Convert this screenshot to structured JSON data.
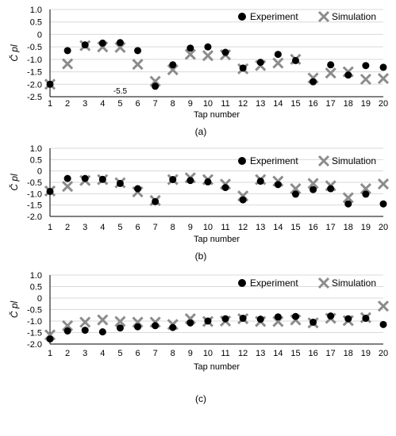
{
  "chart_data": [
    {
      "type": "scatter",
      "panel_label": "(a)",
      "xlabel": "Tap number",
      "ylabel": "C̆ pl",
      "ylim": [
        -2.5,
        1.0
      ],
      "ytick_labels": [
        "1.0",
        "0.5",
        "0",
        "-0.5",
        "-1.0",
        "-1.5",
        "-2.0",
        "-2.5"
      ],
      "yticks": [
        1.0,
        0.5,
        0,
        -0.5,
        -1.0,
        -1.5,
        -2.0,
        -2.5
      ],
      "annotation": "-5.5",
      "x": [
        1,
        2,
        3,
        4,
        5,
        6,
        7,
        8,
        9,
        10,
        11,
        12,
        13,
        14,
        15,
        16,
        17,
        18,
        19,
        20
      ],
      "series": [
        {
          "name": "Experiment",
          "values": [
            -2.0,
            -0.65,
            -0.42,
            -0.35,
            -0.33,
            -0.65,
            -2.08,
            -1.22,
            -0.55,
            -0.5,
            -0.72,
            -1.35,
            -1.12,
            -0.8,
            -1.05,
            -1.9,
            -1.22,
            -1.63,
            -1.25,
            -1.32
          ]
        },
        {
          "name": "Simulation",
          "values": [
            -2.0,
            -1.18,
            -0.45,
            -0.5,
            -0.52,
            -1.2,
            -1.88,
            -1.42,
            -0.8,
            -0.85,
            -0.82,
            -1.38,
            -1.25,
            -1.15,
            -1.0,
            -1.75,
            -1.55,
            -1.5,
            -1.8,
            -1.77
          ]
        }
      ],
      "grid": true,
      "legend": "top-right"
    },
    {
      "type": "scatter",
      "panel_label": "(b)",
      "xlabel": "Tap number",
      "ylabel": "C̆ pl",
      "ylim": [
        -2.0,
        1.0
      ],
      "ytick_labels": [
        "1.0",
        "0.5",
        "0",
        "-0.5",
        "-1.0",
        "-1.5",
        "-2.0"
      ],
      "yticks": [
        1.0,
        0.5,
        0,
        -0.5,
        -1.0,
        -1.5,
        -2.0
      ],
      "x": [
        1,
        2,
        3,
        4,
        5,
        6,
        7,
        8,
        9,
        10,
        11,
        12,
        13,
        14,
        15,
        16,
        17,
        18,
        19,
        20
      ],
      "series": [
        {
          "name": "Experiment",
          "values": [
            -0.9,
            -0.33,
            -0.33,
            -0.37,
            -0.55,
            -0.78,
            -1.35,
            -0.38,
            -0.42,
            -0.48,
            -0.73,
            -1.27,
            -0.45,
            -0.6,
            -1.02,
            -0.82,
            -0.78,
            -1.45,
            -1.02,
            -1.45
          ]
        },
        {
          "name": "Simulation",
          "values": [
            -0.88,
            -0.68,
            -0.42,
            -0.38,
            -0.52,
            -0.92,
            -1.3,
            -0.38,
            -0.3,
            -0.38,
            -0.58,
            -1.1,
            -0.38,
            -0.45,
            -0.78,
            -0.55,
            -0.65,
            -1.18,
            -0.78,
            -0.57
          ]
        }
      ],
      "grid": true,
      "legend": "top-right"
    },
    {
      "type": "scatter",
      "panel_label": "(c)",
      "xlabel": "Tap number",
      "ylabel": "C̆ pl",
      "ylim": [
        -2.0,
        1.0
      ],
      "ytick_labels": [
        "1.0",
        "0.5",
        "0",
        "-0.5",
        "-1.0",
        "-1.5",
        "-2.0"
      ],
      "yticks": [
        1.0,
        0.5,
        0,
        -0.5,
        -1.0,
        -1.5,
        -2.0
      ],
      "x": [
        1,
        2,
        3,
        4,
        5,
        6,
        7,
        8,
        9,
        10,
        11,
        12,
        13,
        14,
        15,
        16,
        17,
        18,
        19,
        20
      ],
      "series": [
        {
          "name": "Experiment",
          "values": [
            -1.78,
            -1.43,
            -1.4,
            -1.47,
            -1.3,
            -1.25,
            -1.2,
            -1.28,
            -1.08,
            -1.0,
            -0.9,
            -0.88,
            -0.92,
            -0.82,
            -0.8,
            -1.05,
            -0.78,
            -0.9,
            -0.88,
            -1.15
          ]
        },
        {
          "name": "Simulation",
          "values": [
            -1.6,
            -1.2,
            -1.05,
            -0.95,
            -1.02,
            -1.05,
            -1.05,
            -1.15,
            -0.9,
            -1.02,
            -1.0,
            -0.9,
            -1.02,
            -1.02,
            -0.95,
            -1.08,
            -0.88,
            -0.98,
            -0.85,
            -0.35
          ]
        }
      ],
      "grid": true,
      "legend": "top-right"
    }
  ],
  "colors": {
    "experiment_marker": "#000000",
    "simulation_marker": "#8c8c8c",
    "gridline": "#d9d9d9",
    "axis": "#000000"
  }
}
